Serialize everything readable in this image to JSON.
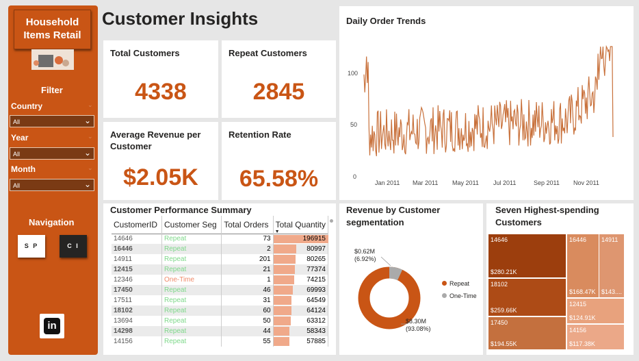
{
  "sidebar": {
    "logo_line1": "Household",
    "logo_line2": "Items Retail",
    "filter_title": "Filter",
    "filters": [
      {
        "label": "Country",
        "value": "All"
      },
      {
        "label": "Year",
        "value": "All"
      },
      {
        "label": "Month",
        "value": "All"
      }
    ],
    "nav_title": "Navigation",
    "nav_buttons": [
      "S P",
      "C I"
    ],
    "linkedin_label": "in"
  },
  "page_title": "Customer Insights",
  "kpis": {
    "total_customers": {
      "label": "Total Customers",
      "value": "4338"
    },
    "repeat_customers": {
      "label": "Repeat Customers",
      "value": "2845"
    },
    "avg_revenue": {
      "label": "Average Revenue per Customer",
      "value": "$2.05K"
    },
    "retention": {
      "label": "Retention Rate",
      "value": "65.58%"
    }
  },
  "summary_table": {
    "title": "Customer Performance Summary",
    "columns": [
      "CustomerID",
      "Customer Seg",
      "Total Orders",
      "Total Quantity"
    ],
    "rows": [
      {
        "id": "14646",
        "seg": "Repeat",
        "orders": "73",
        "qty": "196915",
        "q": 196915
      },
      {
        "id": "16446",
        "seg": "Repeat",
        "orders": "2",
        "qty": "80997",
        "q": 80997
      },
      {
        "id": "14911",
        "seg": "Repeat",
        "orders": "201",
        "qty": "80265",
        "q": 80265
      },
      {
        "id": "12415",
        "seg": "Repeat",
        "orders": "21",
        "qty": "77374",
        "q": 77374
      },
      {
        "id": "12346",
        "seg": "One-Time",
        "orders": "1",
        "qty": "74215",
        "q": 74215
      },
      {
        "id": "17450",
        "seg": "Repeat",
        "orders": "46",
        "qty": "69993",
        "q": 69993
      },
      {
        "id": "17511",
        "seg": "Repeat",
        "orders": "31",
        "qty": "64549",
        "q": 64549
      },
      {
        "id": "18102",
        "seg": "Repeat",
        "orders": "60",
        "qty": "64124",
        "q": 64124
      },
      {
        "id": "13694",
        "seg": "Repeat",
        "orders": "50",
        "qty": "63312",
        "q": 63312
      },
      {
        "id": "14298",
        "seg": "Repeat",
        "orders": "44",
        "qty": "58343",
        "q": 58343
      },
      {
        "id": "14156",
        "seg": "Repeat",
        "orders": "55",
        "qty": "57885",
        "q": 57885
      }
    ]
  },
  "trend": {
    "title": "Daily Order Trends",
    "y_ticks": [
      "100",
      "50",
      "0"
    ],
    "x_ticks": [
      "Jan 2011",
      "Mar 2011",
      "May 2011",
      "Jul 2011",
      "Sep 2011",
      "Nov 2011"
    ]
  },
  "donut": {
    "title_line1": "Revenue by Customer",
    "title_line2": "segmentation",
    "small_value": "$0.62M",
    "small_pct": "(6.92%)",
    "large_value": "$8.30M",
    "large_pct": "(93.08%)",
    "legend": [
      "Repeat",
      "One-Time"
    ]
  },
  "treemap": {
    "title_line1": "Seven Highest-spending",
    "title_line2": "Customers",
    "items": [
      {
        "id": "14646",
        "value": "$280.21K"
      },
      {
        "id": "18102",
        "value": "$259.66K"
      },
      {
        "id": "17450",
        "value": "$194.55K"
      },
      {
        "id": "16446",
        "value": "$168.47K"
      },
      {
        "id": "14911",
        "value": "$143...."
      },
      {
        "id": "12415",
        "value": "$124.91K"
      },
      {
        "id": "14156",
        "value": "$117.38K"
      }
    ]
  },
  "colors": {
    "accent": "#c95515",
    "repeat": "#7ed88a",
    "one_time": "#f08a6a",
    "bar": "#f0a98a"
  }
}
